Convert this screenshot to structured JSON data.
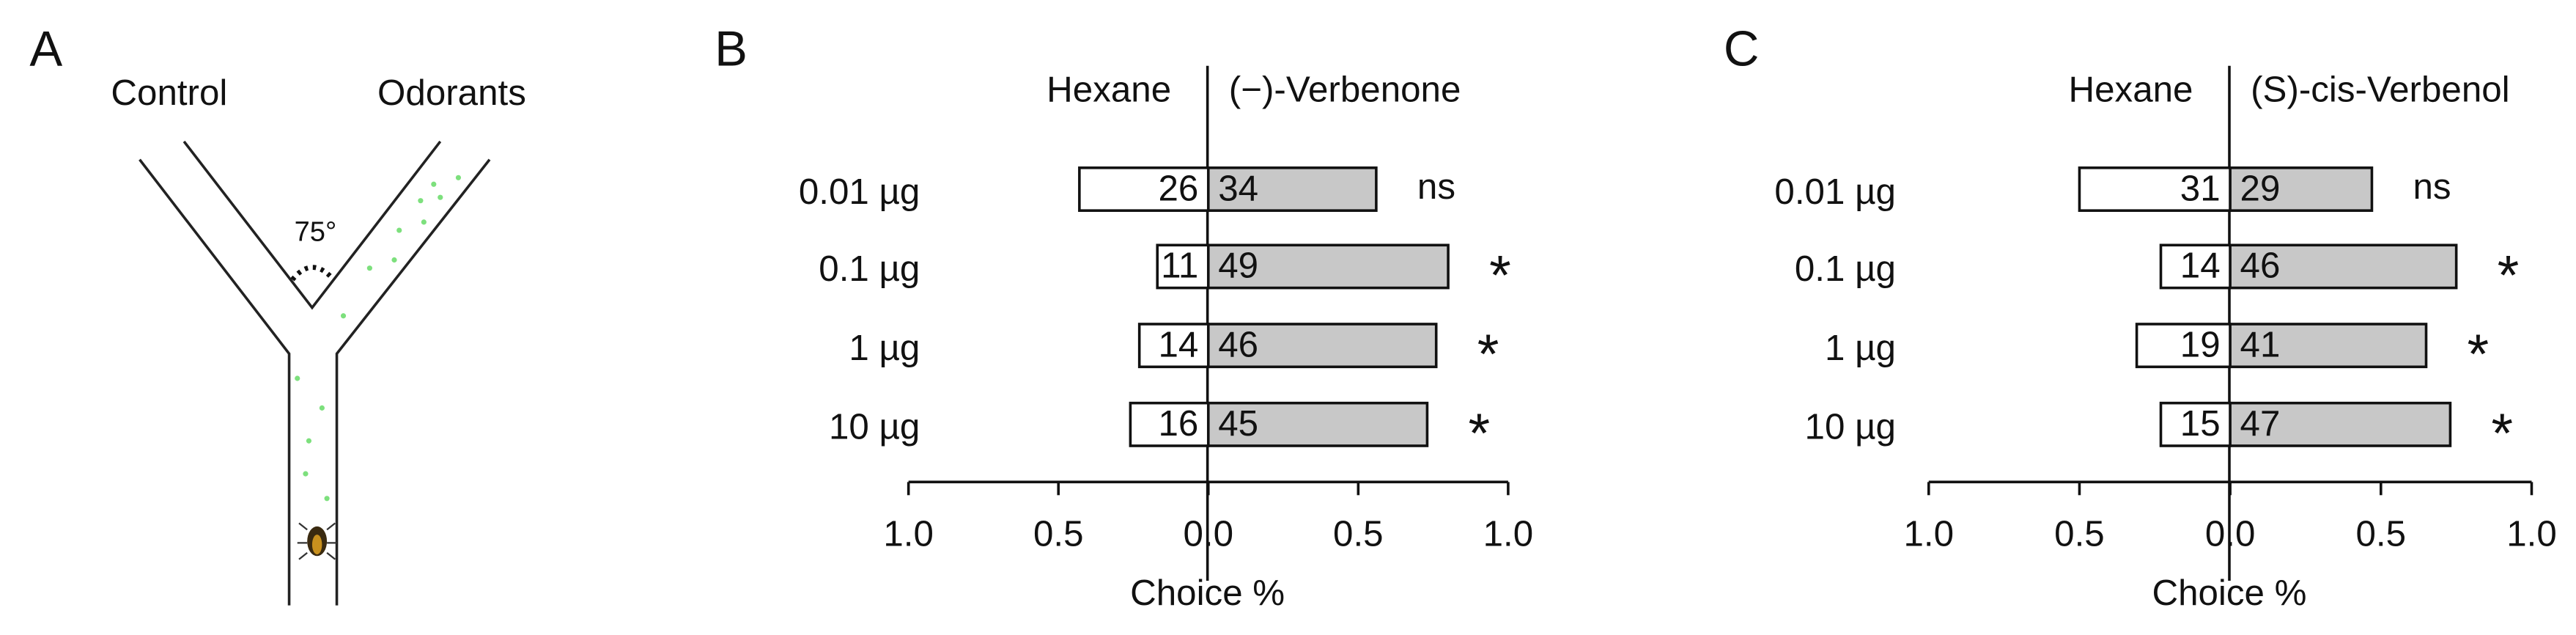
{
  "panel_a": {
    "label": "A",
    "left_arm": "Control",
    "right_arm": "Odorants",
    "angle": "75°"
  },
  "chart_data": [
    {
      "type": "diverging-bar",
      "panel_label": "B",
      "xlabel": "Choice %",
      "categories": [
        "0.01 µg",
        "0.1 µg",
        "1 µg",
        "10 µg"
      ],
      "series": [
        {
          "name": "Hexane",
          "color": "#ffffff",
          "values": [
            -0.43,
            -0.17,
            -0.23,
            -0.26
          ],
          "counts": [
            26,
            11,
            14,
            16
          ]
        },
        {
          "name": "(−)-Verbenone",
          "color": "#c8c8c8",
          "values": [
            0.56,
            0.8,
            0.76,
            0.73
          ],
          "counts": [
            34,
            49,
            46,
            45
          ]
        }
      ],
      "significance": [
        "ns",
        "*",
        "*",
        "*"
      ],
      "xlim": [
        -1,
        1
      ],
      "xticks": [
        {
          "value": -1,
          "label": "1.0"
        },
        {
          "value": -0.5,
          "label": "0.5"
        },
        {
          "value": 0,
          "label": "0.0"
        },
        0.5,
        {
          "value": 1,
          "label": "1.0"
        }
      ]
    },
    {
      "type": "diverging-bar",
      "panel_label": "C",
      "xlabel": "Choice %",
      "categories": [
        "0.01 µg",
        "0.1 µg",
        "1 µg",
        "10 µg"
      ],
      "series": [
        {
          "name": "Hexane",
          "color": "#ffffff",
          "values": [
            -0.5,
            -0.23,
            -0.31,
            -0.23
          ],
          "counts": [
            31,
            14,
            19,
            15
          ]
        },
        {
          "name": "(S)-cis-Verbenol",
          "color": "#c8c8c8",
          "values": [
            0.47,
            0.75,
            0.65,
            0.73
          ],
          "counts": [
            29,
            46,
            41,
            47
          ]
        }
      ],
      "significance": [
        "ns",
        "*",
        "*",
        "*"
      ],
      "xlim": [
        -1,
        1
      ],
      "xticks": [
        {
          "value": -1,
          "label": "1.0"
        },
        {
          "value": -0.5,
          "label": "0.5"
        },
        {
          "value": 0,
          "label": "0.0"
        },
        0.5,
        {
          "value": 1,
          "label": "1.0"
        }
      ]
    }
  ]
}
